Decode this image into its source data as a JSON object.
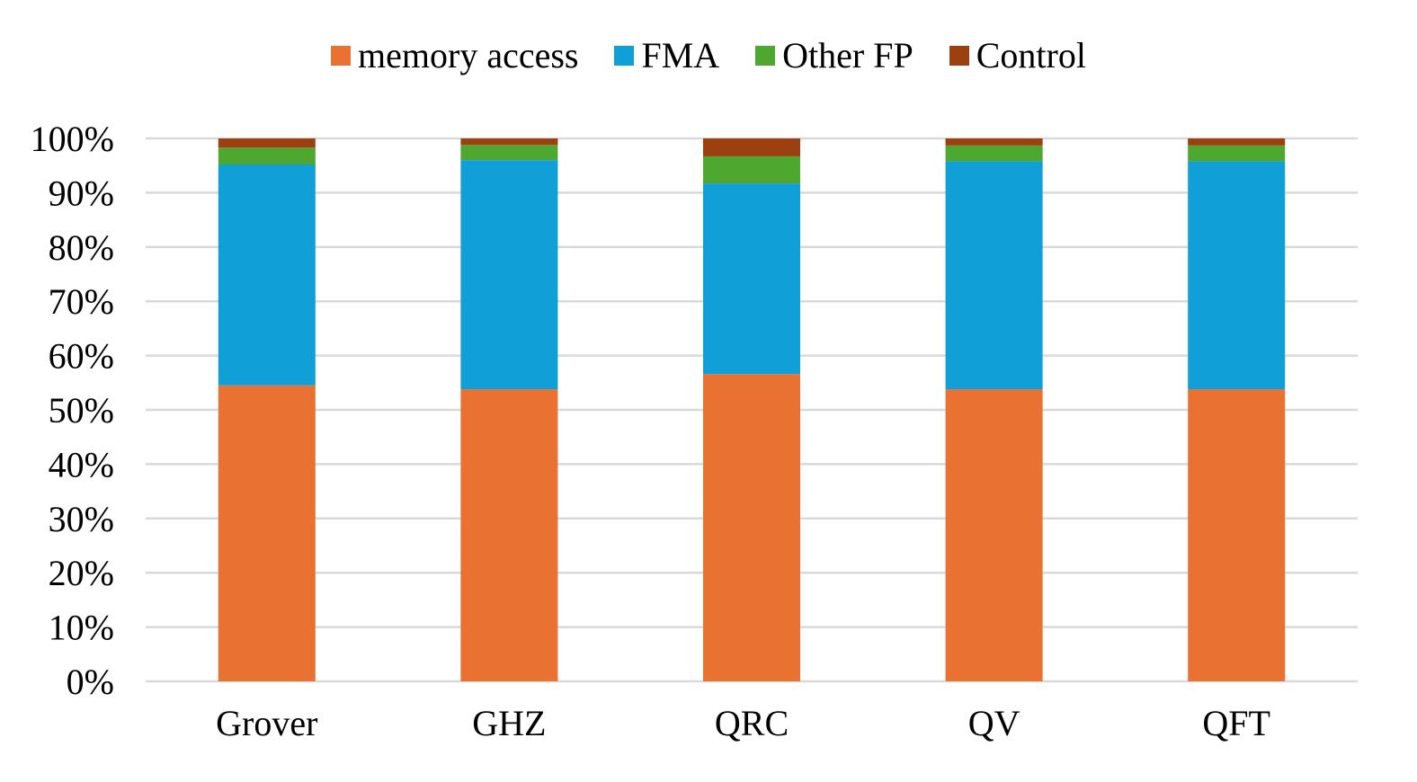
{
  "chart_data": {
    "type": "bar",
    "stacked": true,
    "categories": [
      "Grover",
      "GHZ",
      "QRC",
      "QV",
      "QFT"
    ],
    "series": [
      {
        "name": "memory access",
        "color": "#E97132",
        "values": [
          54.5,
          53.8,
          56.6,
          53.8,
          53.8
        ]
      },
      {
        "name": "FMA",
        "color": "#119FD8",
        "values": [
          40.7,
          42.2,
          35.1,
          42.0,
          42.0
        ]
      },
      {
        "name": "Other FP",
        "color": "#4EA72E",
        "values": [
          3.1,
          2.8,
          5.0,
          2.9,
          2.9
        ]
      },
      {
        "name": "Control",
        "color": "#9C3F11",
        "values": [
          1.7,
          1.2,
          3.3,
          1.3,
          1.3
        ]
      }
    ],
    "yticks": [
      "0%",
      "10%",
      "20%",
      "30%",
      "40%",
      "50%",
      "60%",
      "70%",
      "80%",
      "90%",
      "100%"
    ],
    "ylim": [
      0,
      100
    ],
    "title": "",
    "xlabel": "",
    "ylabel": "",
    "grid": true,
    "legend": "top"
  }
}
